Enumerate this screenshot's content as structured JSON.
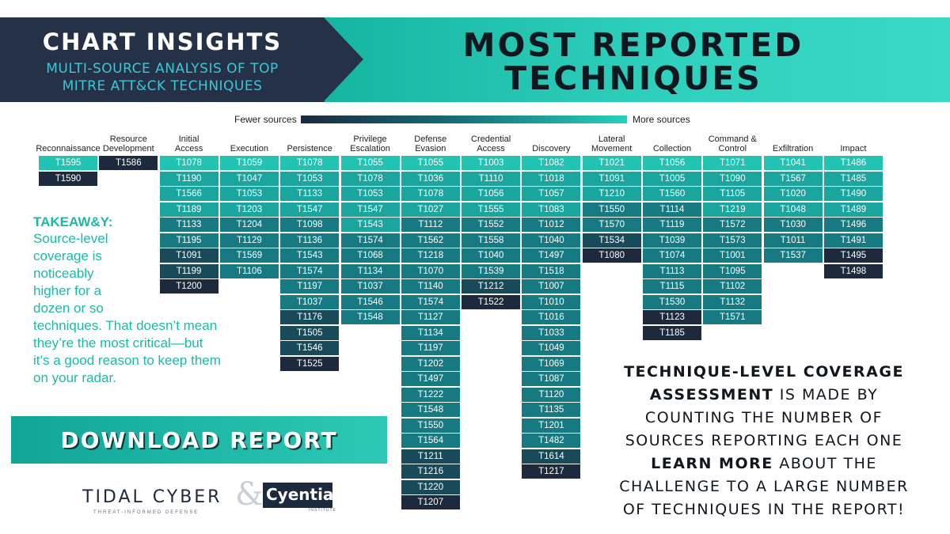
{
  "header": {
    "title": "CHART INSIGHTS",
    "subtitle_line1": "MULTI-SOURCE ANALYSIS OF TOP",
    "subtitle_line2": "MITRE ATT&CK TECHNIQUES",
    "main_line1": "MOST REPORTED",
    "main_line2": "TECHNIQUES"
  },
  "legend": {
    "fewer": "Fewer sources",
    "more": "More sources"
  },
  "colors": {
    "header_dark": "#253146",
    "accent_teal": "#1fb8a7",
    "shade_1": "#1d2a3e",
    "shade_2": "#194a5a",
    "shade_3": "#177a82",
    "shade_4": "#1ba59f",
    "shade_5": "#22c3b2"
  },
  "chart_data": {
    "type": "table",
    "columns": [
      {
        "name": "Reconnaissance",
        "techniques": [
          [
            "T1595",
            5
          ],
          [
            "T1590",
            1
          ]
        ]
      },
      {
        "name": "Resource\nDevelopment",
        "techniques": [
          [
            "T1586",
            1
          ]
        ]
      },
      {
        "name": "Initial\nAccess",
        "techniques": [
          [
            "T1078",
            5
          ],
          [
            "T1190",
            4
          ],
          [
            "T1566",
            4
          ],
          [
            "T1189",
            4
          ],
          [
            "T1133",
            3
          ],
          [
            "T1195",
            3
          ],
          [
            "T1091",
            2
          ],
          [
            "T1199",
            2
          ],
          [
            "T1200",
            1
          ]
        ]
      },
      {
        "name": "Execution",
        "techniques": [
          [
            "T1059",
            5
          ],
          [
            "T1047",
            4
          ],
          [
            "T1053",
            4
          ],
          [
            "T1203",
            4
          ],
          [
            "T1204",
            3
          ],
          [
            "T1129",
            3
          ],
          [
            "T1569",
            3
          ],
          [
            "T1106",
            3
          ]
        ]
      },
      {
        "name": "Persistence",
        "techniques": [
          [
            "T1078",
            5
          ],
          [
            "T1053",
            4
          ],
          [
            "T1133",
            4
          ],
          [
            "T1547",
            4
          ],
          [
            "T1098",
            3
          ],
          [
            "T1136",
            3
          ],
          [
            "T1543",
            3
          ],
          [
            "T1574",
            3
          ],
          [
            "T1197",
            3
          ],
          [
            "T1037",
            3
          ],
          [
            "T1176",
            2
          ],
          [
            "T1505",
            2
          ],
          [
            "T1546",
            2
          ],
          [
            "T1525",
            1
          ]
        ]
      },
      {
        "name": "Privilege\nEscalation",
        "techniques": [
          [
            "T1055",
            5
          ],
          [
            "T1078",
            4
          ],
          [
            "T1053",
            4
          ],
          [
            "T1547",
            4
          ],
          [
            "T1543",
            4
          ],
          [
            "T1574",
            3
          ],
          [
            "T1068",
            3
          ],
          [
            "T1134",
            3
          ],
          [
            "T1037",
            3
          ],
          [
            "T1546",
            3
          ],
          [
            "T1548",
            3
          ]
        ]
      },
      {
        "name": "Defense\nEvasion",
        "techniques": [
          [
            "T1055",
            5
          ],
          [
            "T1036",
            4
          ],
          [
            "T1078",
            4
          ],
          [
            "T1027",
            4
          ],
          [
            "T1112",
            3
          ],
          [
            "T1562",
            3
          ],
          [
            "T1218",
            3
          ],
          [
            "T1070",
            3
          ],
          [
            "T1140",
            3
          ],
          [
            "T1574",
            3
          ],
          [
            "T1127",
            3
          ],
          [
            "T1134",
            3
          ],
          [
            "T1197",
            3
          ],
          [
            "T1202",
            3
          ],
          [
            "T1497",
            3
          ],
          [
            "T1222",
            3
          ],
          [
            "T1548",
            3
          ],
          [
            "T1550",
            3
          ],
          [
            "T1564",
            3
          ],
          [
            "T1211",
            2
          ],
          [
            "T1216",
            2
          ],
          [
            "T1220",
            2
          ],
          [
            "T1207",
            1
          ]
        ]
      },
      {
        "name": "Credential\nAccess",
        "techniques": [
          [
            "T1003",
            5
          ],
          [
            "T1110",
            4
          ],
          [
            "T1056",
            4
          ],
          [
            "T1555",
            4
          ],
          [
            "T1552",
            3
          ],
          [
            "T1558",
            3
          ],
          [
            "T1040",
            3
          ],
          [
            "T1539",
            3
          ],
          [
            "T1212",
            2
          ],
          [
            "T1522",
            1
          ]
        ]
      },
      {
        "name": "Discovery",
        "techniques": [
          [
            "T1082",
            5
          ],
          [
            "T1018",
            4
          ],
          [
            "T1057",
            4
          ],
          [
            "T1083",
            4
          ],
          [
            "T1012",
            3
          ],
          [
            "T1040",
            3
          ],
          [
            "T1497",
            3
          ],
          [
            "T1518",
            3
          ],
          [
            "T1007",
            3
          ],
          [
            "T1010",
            3
          ],
          [
            "T1016",
            3
          ],
          [
            "T1033",
            3
          ],
          [
            "T1049",
            3
          ],
          [
            "T1069",
            3
          ],
          [
            "T1087",
            3
          ],
          [
            "T1120",
            3
          ],
          [
            "T1135",
            3
          ],
          [
            "T1201",
            3
          ],
          [
            "T1482",
            3
          ],
          [
            "T1614",
            2
          ],
          [
            "T1217",
            1
          ]
        ]
      },
      {
        "name": "Lateral\nMovement",
        "techniques": [
          [
            "T1021",
            5
          ],
          [
            "T1091",
            4
          ],
          [
            "T1210",
            4
          ],
          [
            "T1550",
            3
          ],
          [
            "T1570",
            3
          ],
          [
            "T1534",
            2
          ],
          [
            "T1080",
            1
          ]
        ]
      },
      {
        "name": "Collection",
        "techniques": [
          [
            "T1056",
            5
          ],
          [
            "T1005",
            4
          ],
          [
            "T1560",
            4
          ],
          [
            "T1114",
            3
          ],
          [
            "T1119",
            3
          ],
          [
            "T1039",
            3
          ],
          [
            "T1074",
            3
          ],
          [
            "T1113",
            3
          ],
          [
            "T1115",
            3
          ],
          [
            "T1530",
            3
          ],
          [
            "T1123",
            1
          ],
          [
            "T1185",
            1
          ]
        ]
      },
      {
        "name": "Command &\nControl",
        "techniques": [
          [
            "T1071",
            5
          ],
          [
            "T1090",
            4
          ],
          [
            "T1105",
            4
          ],
          [
            "T1219",
            4
          ],
          [
            "T1572",
            3
          ],
          [
            "T1573",
            3
          ],
          [
            "T1001",
            3
          ],
          [
            "T1095",
            3
          ],
          [
            "T1102",
            3
          ],
          [
            "T1132",
            3
          ],
          [
            "T1571",
            3
          ]
        ]
      },
      {
        "name": "Exfiltration",
        "techniques": [
          [
            "T1041",
            5
          ],
          [
            "T1567",
            4
          ],
          [
            "T1020",
            4
          ],
          [
            "T1048",
            4
          ],
          [
            "T1030",
            3
          ],
          [
            "T1011",
            3
          ],
          [
            "T1537",
            3
          ]
        ]
      },
      {
        "name": "Impact",
        "techniques": [
          [
            "T1486",
            5
          ],
          [
            "T1485",
            4
          ],
          [
            "T1490",
            4
          ],
          [
            "T1489",
            4
          ],
          [
            "T1496",
            3
          ],
          [
            "T1491",
            3
          ],
          [
            "T1495",
            1
          ],
          [
            "T1498",
            1
          ]
        ]
      }
    ]
  },
  "takeaway": {
    "heading": "TAKEAW&Y:",
    "lines": [
      "Source-level",
      "coverage is",
      "noticeably",
      "higher for a",
      "dozen or so",
      "techniques. That doesn’t mean",
      "they’re the most critical—but",
      "it’s a good reason to keep them",
      "on your radar."
    ]
  },
  "download": {
    "label": "DOWNLOAD REPORT"
  },
  "logos": {
    "tidal_text": "TIDAL CYBER",
    "tidal_tagline": "THREAT-INFORMED DEFENSE",
    "ampersand": "&",
    "cyentia_text": "Cyentia",
    "cyentia_tagline": "INSTITUTE"
  },
  "note": {
    "line1": "TECHNIQUE-LEVEL COVERAGE",
    "line2_bold": "ASSESSMENT",
    "line2_rest": " IS MADE BY",
    "line3": "COUNTING THE NUMBER OF",
    "line4": "SOURCES REPORTING EACH ONE",
    "line5_bold": "LEARN MORE",
    "line5_rest": " ABOUT THE",
    "line6": "CHALLENGE TO A LARGE NUMBER",
    "line7": "OF TECHNIQUES IN THE REPORT!"
  }
}
